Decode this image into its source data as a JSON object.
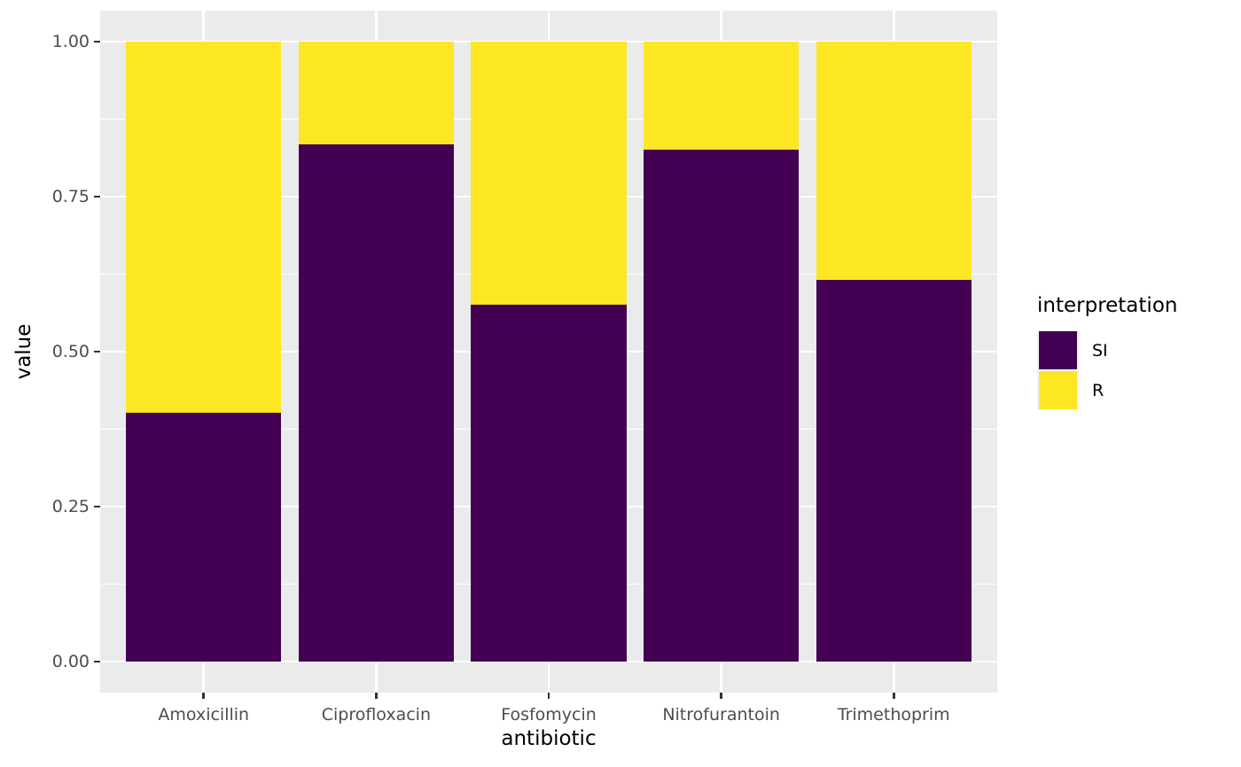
{
  "chart_data": {
    "type": "bar",
    "stacked": true,
    "orientation": "vertical",
    "xlabel": "antibiotic",
    "ylabel": "value",
    "categories": [
      "Amoxicillin",
      "Ciprofloxacin",
      "Fosfomycin",
      "Nitrofurantoin",
      "Trimethoprim"
    ],
    "series": [
      {
        "name": "SI",
        "color": "#440154",
        "values": [
          0.401,
          0.834,
          0.576,
          0.826,
          0.616
        ]
      },
      {
        "name": "R",
        "color": "#FDE725",
        "values": [
          0.599,
          0.166,
          0.424,
          0.174,
          0.384
        ]
      }
    ],
    "ylim": [
      0,
      1
    ],
    "y_ticks": [
      {
        "value": 0.0,
        "label": "0.00"
      },
      {
        "value": 0.25,
        "label": "0.25"
      },
      {
        "value": 0.5,
        "label": "0.50"
      },
      {
        "value": 0.75,
        "label": "0.75"
      },
      {
        "value": 1.0,
        "label": "1.00"
      }
    ],
    "y_minor_breaks": [
      0.125,
      0.375,
      0.625,
      0.875
    ],
    "legend_title": "interpretation",
    "legend_position": "right",
    "grid": true,
    "theme": {
      "panel_bg": "#EBEBEB",
      "grid_color": "#FFFFFF",
      "tick_mark_color": "#333333",
      "axis_text_color": "#4D4D4D",
      "title_color": "#000000",
      "legend_key_bg": "#F2F2F2"
    }
  }
}
